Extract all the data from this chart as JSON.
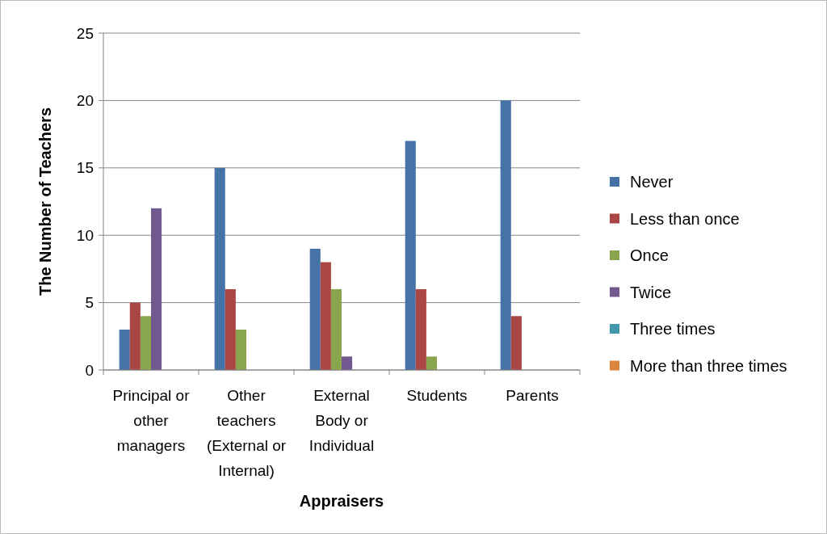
{
  "chart_data": {
    "type": "bar",
    "xlabel": "Appraisers",
    "ylabel": "The Number of Teachers",
    "categories": [
      "Principal or other managers",
      "Other teachers (External or Internal)",
      "External Body or Individual",
      "Students",
      "Parents"
    ],
    "series": [
      {
        "name": "Never",
        "color": "#4572a7",
        "values": [
          3,
          15,
          9,
          17,
          20
        ]
      },
      {
        "name": "Less than once",
        "color": "#aa4643",
        "values": [
          5,
          6,
          8,
          6,
          4
        ]
      },
      {
        "name": "Once",
        "color": "#89a54e",
        "values": [
          4,
          3,
          6,
          1,
          0
        ]
      },
      {
        "name": "Twice",
        "color": "#71588f",
        "values": [
          12,
          0,
          1,
          0,
          0
        ]
      },
      {
        "name": "Three times",
        "color": "#4198af",
        "values": [
          0,
          0,
          0,
          0,
          0
        ]
      },
      {
        "name": "More than three times",
        "color": "#db843d",
        "values": [
          0,
          0,
          0,
          0,
          0
        ]
      }
    ],
    "ylim": [
      0,
      25
    ],
    "yticks": [
      0,
      5,
      10,
      15,
      20,
      25
    ],
    "grid": "y",
    "legend": "right"
  }
}
